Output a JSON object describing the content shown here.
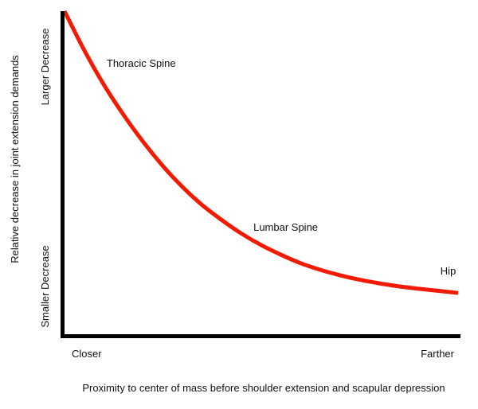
{
  "chart_data": {
    "type": "line",
    "title": "",
    "xlabel": "Proximity to center of mass before shoulder extension and scapular depression",
    "ylabel": "Relative decrease in joint extension demands",
    "x_tick_labels": {
      "low": "Closer",
      "high": "Farther"
    },
    "y_tick_labels": {
      "low": "Smaller Decrease",
      "high": "Larger Decrease"
    },
    "xlim": [
      0,
      1
    ],
    "ylim": [
      0,
      1
    ],
    "grid": false,
    "legend": "none",
    "series": [
      {
        "color": "#f21a00",
        "x": [
          0.0,
          0.05,
          0.1,
          0.15,
          0.2,
          0.25,
          0.3,
          0.35,
          0.4,
          0.45,
          0.5,
          0.55,
          0.6,
          0.65,
          0.7,
          0.75,
          0.8,
          0.85,
          0.9,
          0.95,
          1.0
        ],
        "y": [
          1.0,
          0.87,
          0.755,
          0.655,
          0.565,
          0.485,
          0.415,
          0.355,
          0.305,
          0.26,
          0.222,
          0.19,
          0.162,
          0.14,
          0.122,
          0.107,
          0.095,
          0.085,
          0.077,
          0.07,
          0.063
        ]
      }
    ],
    "annotations": [
      {
        "text": "Thoracic Spine",
        "x": 0.107,
        "y": 0.815
      },
      {
        "text": "Lumbar Spine",
        "x": 0.48,
        "y": 0.27
      },
      {
        "text": "Hip",
        "x": 0.955,
        "y": 0.125
      }
    ],
    "colors": {
      "axis": "#000000",
      "curve": "#f21a00",
      "text": "#111111"
    }
  }
}
